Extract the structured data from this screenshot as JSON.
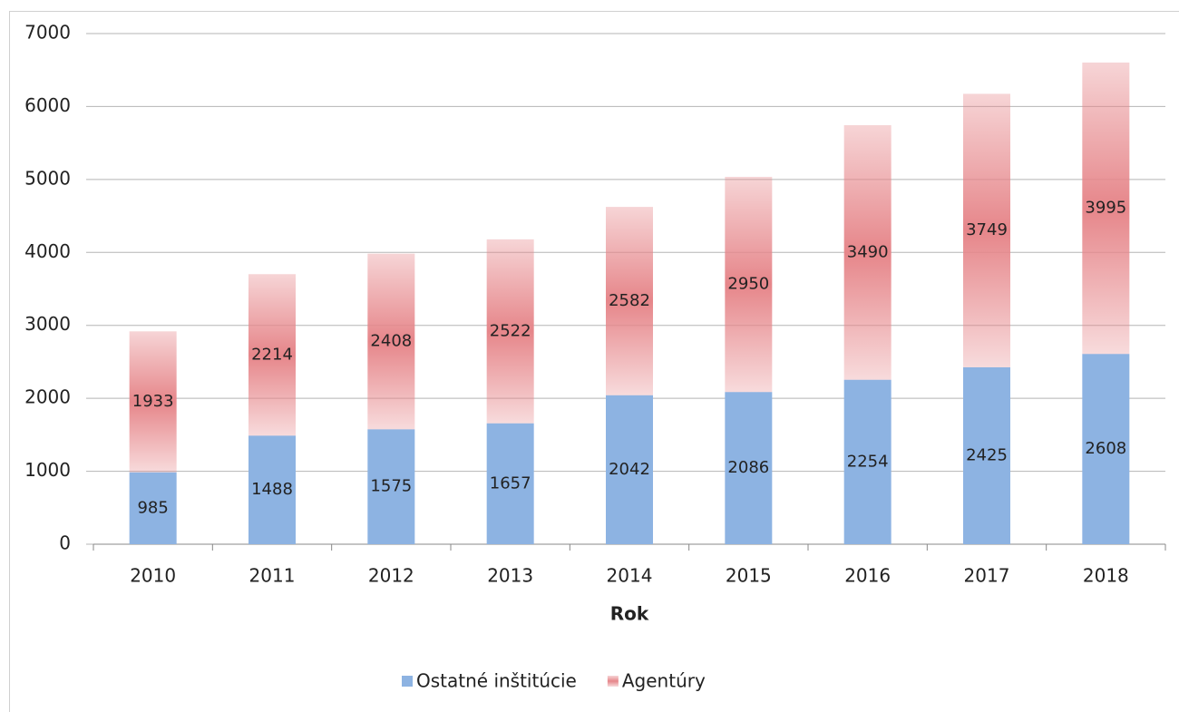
{
  "chart_data": {
    "type": "stacked_bar",
    "x_label": "Rok",
    "categories": [
      "2010",
      "2011",
      "2012",
      "2013",
      "2014",
      "2015",
      "2016",
      "2017",
      "2018"
    ],
    "series": [
      {
        "name": "Ostatné inštitúcie",
        "color": "#8db3e2",
        "values": [
          985,
          1488,
          1575,
          1657,
          2042,
          2086,
          2254,
          2425,
          2608
        ]
      },
      {
        "name": "Agentúry",
        "color": "#e6868a",
        "values": [
          1933,
          2214,
          2408,
          2522,
          2582,
          2950,
          3490,
          3749,
          3995
        ]
      }
    ],
    "ylim": [
      0,
      7000
    ],
    "yticks": [
      0,
      1000,
      2000,
      3000,
      4000,
      5000,
      6000,
      7000
    ],
    "grid": true,
    "legend": "bottom"
  }
}
